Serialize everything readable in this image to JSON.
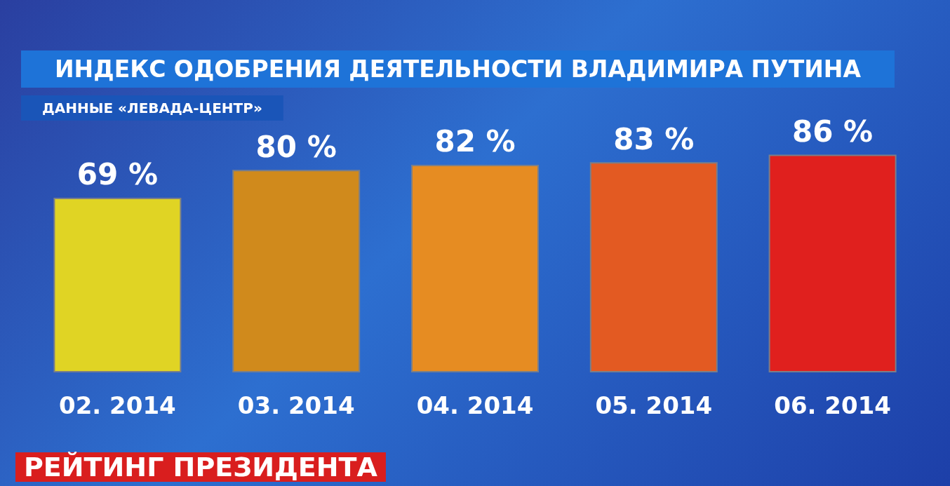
{
  "chart_data": {
    "type": "bar",
    "title": "ИНДЕКС ОДОБРЕНИЯ ДЕЯТЕЛЬНОСТИ ВЛАДИМИРА ПУТИНА",
    "subtitle": "ДАННЫЕ «ЛЕВАДА-ЦЕНТР»",
    "categories": [
      "02. 2014",
      "03. 2014",
      "04. 2014",
      "05. 2014",
      "06. 2014"
    ],
    "values": [
      69,
      80,
      82,
      83,
      86
    ],
    "value_labels": [
      "69 %",
      "80 %",
      "82 %",
      "83 %",
      "86 %"
    ],
    "colors": [
      "#e0d424",
      "#d08a1c",
      "#e68c22",
      "#e35a22",
      "#e0201e"
    ],
    "annotations": [
      "РЕЙТИНГ ПРЕЗИДЕНТА"
    ]
  }
}
